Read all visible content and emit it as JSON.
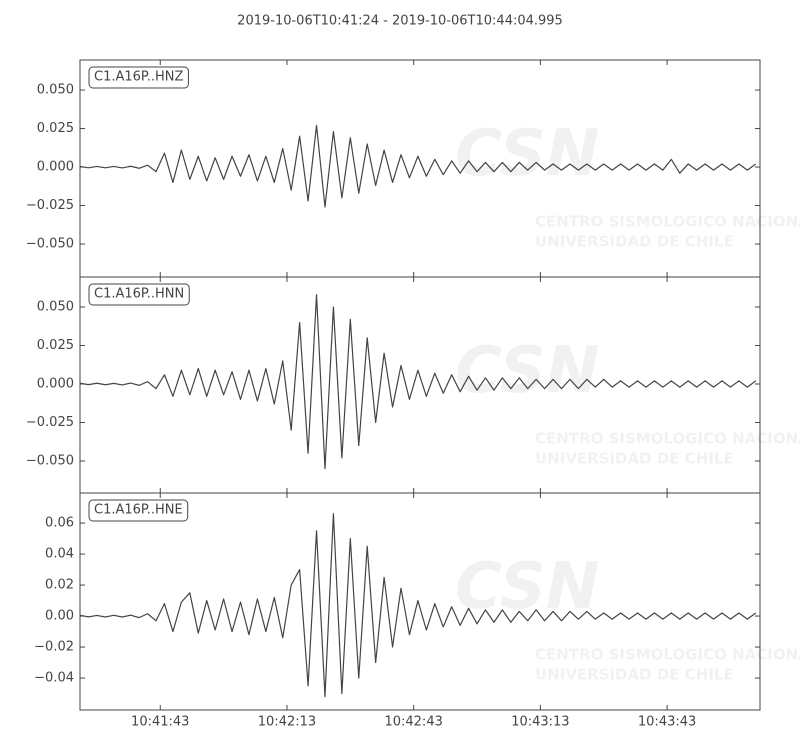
{
  "title": "2019-10-06T10:41:24  -  2019-10-06T10:44:04.995",
  "watermark": {
    "logo": "CSN",
    "line1": "CENTRO SISMOLOGICO NACIONAL",
    "line2": "UNIVERSIDAD DE CHILE"
  },
  "chart_data": [
    {
      "type": "line",
      "label": "C1.A16P..HNZ",
      "color": "#444444",
      "xlim": [
        "10:41:24",
        "10:44:04.995"
      ],
      "xticks": [
        "10:41:43",
        "10:42:13",
        "10:42:43",
        "10:43:13",
        "10:43:43"
      ],
      "ylim": [
        -0.0714,
        0.0695
      ],
      "yticks": [
        {
          "value": -0.05,
          "label": "−0.050"
        },
        {
          "value": -0.025,
          "label": "−0.025"
        },
        {
          "value": 0,
          "label": "0.000"
        },
        {
          "value": 0.025,
          "label": "0.025"
        },
        {
          "value": 0.05,
          "label": "0.050"
        }
      ],
      "x": [
        "10:41:24",
        "10:41:26",
        "10:41:28",
        "10:41:30",
        "10:41:32",
        "10:41:34",
        "10:41:36",
        "10:41:38",
        "10:41:40",
        "10:41:42",
        "10:41:44",
        "10:41:46",
        "10:41:48",
        "10:41:50",
        "10:41:52",
        "10:41:54",
        "10:41:56",
        "10:41:58",
        "10:42:00",
        "10:42:02",
        "10:42:04",
        "10:42:06",
        "10:42:08",
        "10:42:10",
        "10:42:12",
        "10:42:14",
        "10:42:16",
        "10:42:18",
        "10:42:20",
        "10:42:22",
        "10:42:24",
        "10:42:26",
        "10:42:28",
        "10:42:30",
        "10:42:32",
        "10:42:34",
        "10:42:36",
        "10:42:38",
        "10:42:40",
        "10:42:42",
        "10:42:44",
        "10:42:46",
        "10:42:48",
        "10:42:50",
        "10:42:52",
        "10:42:54",
        "10:42:56",
        "10:42:58",
        "10:43:00",
        "10:43:02",
        "10:43:04",
        "10:43:06",
        "10:43:08",
        "10:43:10",
        "10:43:12",
        "10:43:14",
        "10:43:16",
        "10:43:18",
        "10:43:20",
        "10:43:22",
        "10:43:24",
        "10:43:26",
        "10:43:28",
        "10:43:30",
        "10:43:32",
        "10:43:34",
        "10:43:36",
        "10:43:38",
        "10:43:40",
        "10:43:42",
        "10:43:44",
        "10:43:46",
        "10:43:48",
        "10:43:50",
        "10:43:52",
        "10:43:54",
        "10:43:56",
        "10:43:58",
        "10:44:00",
        "10:44:02",
        "10:44:04"
      ],
      "values": [
        0.0004,
        -0.0005,
        0.0004,
        -0.0005,
        0.0004,
        -0.0006,
        0.0005,
        -0.0008,
        0.0012,
        -0.003,
        0.009,
        -0.01,
        0.011,
        -0.008,
        0.007,
        -0.009,
        0.006,
        -0.008,
        0.007,
        -0.006,
        0.008,
        -0.009,
        0.007,
        -0.01,
        0.012,
        -0.015,
        0.02,
        -0.022,
        0.027,
        -0.026,
        0.023,
        -0.02,
        0.019,
        -0.017,
        0.015,
        -0.012,
        0.011,
        -0.01,
        0.008,
        -0.007,
        0.007,
        -0.006,
        0.005,
        -0.005,
        0.004,
        -0.004,
        0.004,
        -0.003,
        0.003,
        -0.003,
        0.003,
        -0.003,
        0.003,
        -0.002,
        0.003,
        -0.002,
        0.002,
        -0.002,
        0.002,
        -0.002,
        0.002,
        -0.002,
        0.002,
        -0.002,
        0.002,
        -0.002,
        0.002,
        -0.002,
        0.002,
        -0.002,
        0.005,
        -0.004,
        0.002,
        -0.002,
        0.002,
        -0.002,
        0.002,
        -0.002,
        0.002,
        -0.002,
        0.002
      ]
    },
    {
      "type": "line",
      "label": "C1.A16P..HNN",
      "color": "#444444",
      "xlim": [
        "10:41:24",
        "10:44:04.995"
      ],
      "xticks": [
        "10:41:43",
        "10:42:13",
        "10:42:43",
        "10:43:13",
        "10:43:43"
      ],
      "ylim": [
        -0.0708,
        0.0695
      ],
      "yticks": [
        {
          "value": -0.05,
          "label": "−0.050"
        },
        {
          "value": -0.025,
          "label": "−0.025"
        },
        {
          "value": 0,
          "label": "0.000"
        },
        {
          "value": 0.025,
          "label": "0.025"
        },
        {
          "value": 0.05,
          "label": "0.050"
        }
      ],
      "x": [
        "10:41:24",
        "10:41:26",
        "10:41:28",
        "10:41:30",
        "10:41:32",
        "10:41:34",
        "10:41:36",
        "10:41:38",
        "10:41:40",
        "10:41:42",
        "10:41:44",
        "10:41:46",
        "10:41:48",
        "10:41:50",
        "10:41:52",
        "10:41:54",
        "10:41:56",
        "10:41:58",
        "10:42:00",
        "10:42:02",
        "10:42:04",
        "10:42:06",
        "10:42:08",
        "10:42:10",
        "10:42:12",
        "10:42:14",
        "10:42:16",
        "10:42:18",
        "10:42:20",
        "10:42:22",
        "10:42:24",
        "10:42:26",
        "10:42:28",
        "10:42:30",
        "10:42:32",
        "10:42:34",
        "10:42:36",
        "10:42:38",
        "10:42:40",
        "10:42:42",
        "10:42:44",
        "10:42:46",
        "10:42:48",
        "10:42:50",
        "10:42:52",
        "10:42:54",
        "10:42:56",
        "10:42:58",
        "10:43:00",
        "10:43:02",
        "10:43:04",
        "10:43:06",
        "10:43:08",
        "10:43:10",
        "10:43:12",
        "10:43:14",
        "10:43:16",
        "10:43:18",
        "10:43:20",
        "10:43:22",
        "10:43:24",
        "10:43:26",
        "10:43:28",
        "10:43:30",
        "10:43:32",
        "10:43:34",
        "10:43:36",
        "10:43:38",
        "10:43:40",
        "10:43:42",
        "10:43:44",
        "10:43:46",
        "10:43:48",
        "10:43:50",
        "10:43:52",
        "10:43:54",
        "10:43:56",
        "10:43:58",
        "10:44:00",
        "10:44:02",
        "10:44:04"
      ],
      "values": [
        0.0005,
        -0.0004,
        0.0005,
        -0.0005,
        0.0004,
        -0.0006,
        0.0006,
        -0.0009,
        0.0015,
        -0.003,
        0.006,
        -0.008,
        0.009,
        -0.007,
        0.01,
        -0.008,
        0.009,
        -0.007,
        0.008,
        -0.01,
        0.009,
        -0.011,
        0.01,
        -0.013,
        0.015,
        -0.03,
        0.04,
        -0.045,
        0.058,
        -0.055,
        0.05,
        -0.048,
        0.042,
        -0.04,
        0.03,
        -0.025,
        0.02,
        -0.015,
        0.012,
        -0.01,
        0.009,
        -0.008,
        0.007,
        -0.006,
        0.006,
        -0.005,
        0.005,
        -0.004,
        0.004,
        -0.004,
        0.004,
        -0.003,
        0.004,
        -0.003,
        0.003,
        -0.003,
        0.003,
        -0.003,
        0.003,
        -0.003,
        0.003,
        -0.002,
        0.003,
        -0.002,
        0.002,
        -0.002,
        0.002,
        -0.002,
        0.002,
        -0.002,
        0.002,
        -0.002,
        0.002,
        -0.002,
        0.002,
        -0.002,
        0.002,
        -0.002,
        0.002,
        -0.002,
        0.002
      ]
    },
    {
      "type": "line",
      "label": "C1.A16P..HNE",
      "color": "#444444",
      "xlim": [
        "10:41:24",
        "10:44:04.995"
      ],
      "xticks": [
        "10:41:43",
        "10:42:13",
        "10:42:43",
        "10:43:13",
        "10:43:43"
      ],
      "ylim": [
        -0.0606,
        0.0794
      ],
      "yticks": [
        {
          "value": -0.04,
          "label": "−0.04"
        },
        {
          "value": -0.02,
          "label": "−0.02"
        },
        {
          "value": 0,
          "label": "0.00"
        },
        {
          "value": 0.02,
          "label": "0.02"
        },
        {
          "value": 0.04,
          "label": "0.04"
        },
        {
          "value": 0.06,
          "label": "0.06"
        }
      ],
      "x": [
        "10:41:24",
        "10:41:26",
        "10:41:28",
        "10:41:30",
        "10:41:32",
        "10:41:34",
        "10:41:36",
        "10:41:38",
        "10:41:40",
        "10:41:42",
        "10:41:44",
        "10:41:46",
        "10:41:48",
        "10:41:50",
        "10:41:52",
        "10:41:54",
        "10:41:56",
        "10:41:58",
        "10:42:00",
        "10:42:02",
        "10:42:04",
        "10:42:06",
        "10:42:08",
        "10:42:10",
        "10:42:12",
        "10:42:14",
        "10:42:16",
        "10:42:18",
        "10:42:20",
        "10:42:22",
        "10:42:24",
        "10:42:26",
        "10:42:28",
        "10:42:30",
        "10:42:32",
        "10:42:34",
        "10:42:36",
        "10:42:38",
        "10:42:40",
        "10:42:42",
        "10:42:44",
        "10:42:46",
        "10:42:48",
        "10:42:50",
        "10:42:52",
        "10:42:54",
        "10:42:56",
        "10:42:58",
        "10:43:00",
        "10:43:02",
        "10:43:04",
        "10:43:06",
        "10:43:08",
        "10:43:10",
        "10:43:12",
        "10:43:14",
        "10:43:16",
        "10:43:18",
        "10:43:20",
        "10:43:22",
        "10:43:24",
        "10:43:26",
        "10:43:28",
        "10:43:30",
        "10:43:32",
        "10:43:34",
        "10:43:36",
        "10:43:38",
        "10:43:40",
        "10:43:42",
        "10:43:44",
        "10:43:46",
        "10:43:48",
        "10:43:50",
        "10:43:52",
        "10:43:54",
        "10:43:56",
        "10:43:58",
        "10:44:00",
        "10:44:02",
        "10:44:04"
      ],
      "values": [
        0.0005,
        -0.0005,
        0.0004,
        -0.0006,
        0.0005,
        -0.0006,
        0.0006,
        -0.001,
        0.0015,
        -0.003,
        0.008,
        -0.01,
        0.009,
        0.015,
        -0.011,
        0.01,
        -0.009,
        0.011,
        -0.01,
        0.009,
        -0.012,
        0.011,
        -0.01,
        0.012,
        -0.014,
        0.02,
        0.03,
        -0.045,
        0.055,
        -0.052,
        0.066,
        -0.05,
        0.05,
        -0.04,
        0.045,
        -0.03,
        0.025,
        -0.02,
        0.018,
        -0.012,
        0.01,
        -0.009,
        0.008,
        -0.007,
        0.006,
        -0.006,
        0.005,
        -0.005,
        0.004,
        -0.004,
        0.004,
        -0.004,
        0.003,
        -0.003,
        0.004,
        -0.003,
        0.003,
        -0.003,
        0.003,
        -0.002,
        0.003,
        -0.002,
        0.002,
        -0.002,
        0.002,
        -0.002,
        0.002,
        -0.002,
        0.002,
        -0.002,
        0.002,
        -0.002,
        0.002,
        -0.002,
        0.002,
        -0.002,
        0.002,
        -0.002,
        0.002,
        -0.002,
        0.002
      ]
    }
  ]
}
